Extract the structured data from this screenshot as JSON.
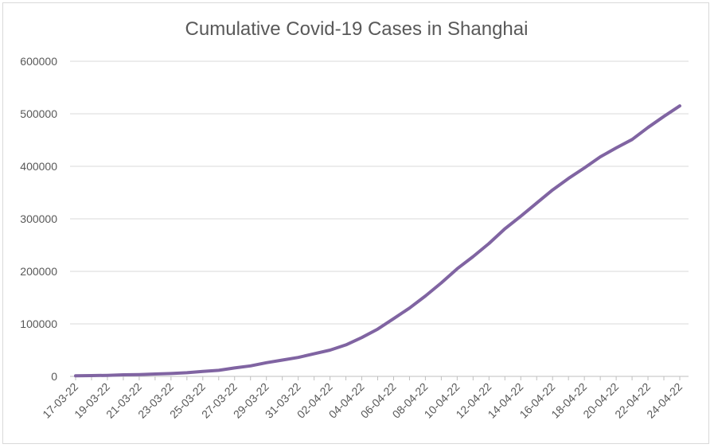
{
  "chart_data": {
    "type": "line",
    "title": "Cumulative Covid-19 Cases in Shanghai",
    "xlabel": "",
    "ylabel": "",
    "ylim": [
      0,
      600000
    ],
    "yticks": [
      "0",
      "100000",
      "200000",
      "300000",
      "400000",
      "500000",
      "600000"
    ],
    "ytick_values": [
      0,
      100000,
      200000,
      300000,
      400000,
      500000,
      600000
    ],
    "x": [
      "17-03-22",
      "18-03-22",
      "19-03-22",
      "20-03-22",
      "21-03-22",
      "22-03-22",
      "23-03-22",
      "24-03-22",
      "25-03-22",
      "26-03-22",
      "27-03-22",
      "28-03-22",
      "29-03-22",
      "30-03-22",
      "31-03-22",
      "01-04-22",
      "02-04-22",
      "03-04-22",
      "04-04-22",
      "05-04-22",
      "06-04-22",
      "07-04-22",
      "08-04-22",
      "09-04-22",
      "10-04-22",
      "11-04-22",
      "12-04-22",
      "13-04-22",
      "14-04-22",
      "15-04-22",
      "16-04-22",
      "17-04-22",
      "18-04-22",
      "19-04-22",
      "20-04-22",
      "21-04-22",
      "22-04-22",
      "23-04-22",
      "24-04-22"
    ],
    "x_tick_labels": [
      "17-03-22",
      "19-03-22",
      "21-03-22",
      "23-03-22",
      "25-03-22",
      "27-03-22",
      "29-03-22",
      "31-03-22",
      "02-04-22",
      "04-04-22",
      "06-04-22",
      "08-04-22",
      "10-04-22",
      "12-04-22",
      "14-04-22",
      "16-04-22",
      "18-04-22",
      "20-04-22",
      "22-04-22",
      "24-04-22"
    ],
    "series": [
      {
        "name": "",
        "color": "#8064a2",
        "values": [
          1000,
          1500,
          2000,
          3000,
          3500,
          4500,
          5500,
          7000,
          9500,
          11500,
          16000,
          20000,
          26000,
          31000,
          36000,
          43000,
          50000,
          60000,
          74000,
          90000,
          110000,
          130000,
          153000,
          178000,
          205000,
          228000,
          253000,
          281000,
          305000,
          330000,
          355000,
          377000,
          397000,
          418000,
          435000,
          451000,
          474000,
          495000,
          515000
        ]
      }
    ],
    "grid": true,
    "legend": "none"
  }
}
